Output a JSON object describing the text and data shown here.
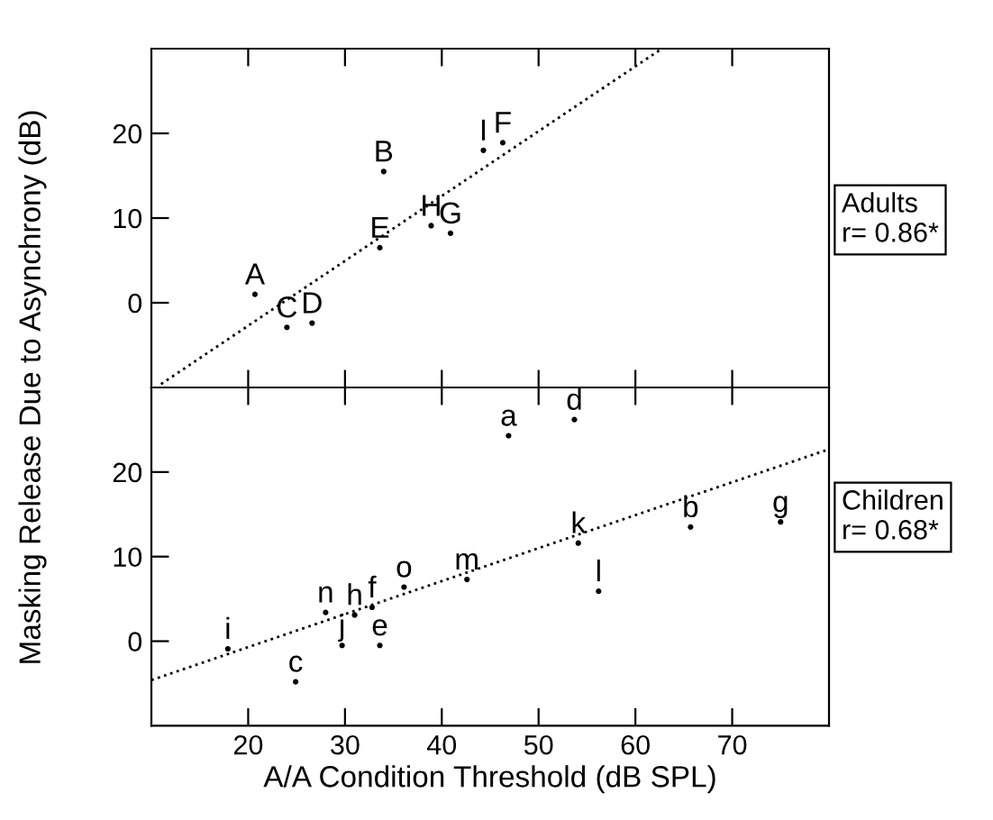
{
  "chart_data": [
    {
      "type": "scatter",
      "ylabel": "Masking Release Due to Asynchrony (dB)",
      "xlim": [
        10,
        80
      ],
      "xticks": [
        {
          "value": 20,
          "label": null
        },
        {
          "value": 30,
          "label": null
        },
        {
          "value": 40,
          "label": null
        },
        {
          "value": 50,
          "label": null
        },
        {
          "value": 60,
          "label": null
        },
        {
          "value": 70,
          "label": null
        }
      ],
      "ylim": [
        -10,
        30
      ],
      "yticks": [
        0,
        10,
        20
      ],
      "tick_labels": "y",
      "grid": false,
      "legend": false,
      "annotations": [
        "Adults\nr= 0.86*"
      ],
      "series": [
        {
          "color": "#000000",
          "x": [
            20.7,
            34.0,
            24.0,
            26.6,
            33.6,
            46.3,
            40.9,
            38.9,
            44.3
          ],
          "values": [
            1.0,
            15.5,
            -2.9,
            -2.4,
            6.5,
            18.9,
            8.2,
            9.1,
            18.0
          ],
          "value_labels": [
            "A",
            "B",
            "C",
            "D",
            "E",
            "F",
            "G",
            "H",
            "I"
          ]
        },
        {
          "type": "line",
          "color": "#000000",
          "line_style": "dotted",
          "x": [
            11.0,
            62.6
          ],
          "values": [
            -9.6,
            29.9
          ]
        }
      ]
    },
    {
      "type": "scatter",
      "xlabel": "A/A Condition Threshold (dB SPL)",
      "xlim": [
        10,
        80
      ],
      "xticks": [
        20,
        30,
        40,
        50,
        60,
        70
      ],
      "ylim": [
        -10,
        30
      ],
      "yticks": [
        0,
        10,
        20
      ],
      "grid": false,
      "legend": false,
      "annotations": [
        "Children\nr= 0.68*"
      ],
      "series": [
        {
          "color": "#000000",
          "x": [
            46.9,
            65.7,
            24.9,
            53.7,
            33.6,
            32.8,
            75.0,
            31.0,
            17.9,
            29.7,
            54.1,
            56.2,
            42.6,
            28.0,
            36.1
          ],
          "values": [
            24.3,
            13.5,
            -4.8,
            26.2,
            -0.5,
            4.0,
            14.1,
            3.1,
            -0.9,
            -0.5,
            11.6,
            5.9,
            7.3,
            3.4,
            6.4
          ],
          "value_labels": [
            "a",
            "b",
            "c",
            "d",
            "e",
            "f",
            "g",
            "h",
            "i",
            "j",
            "k",
            "l",
            "m",
            "n",
            "o"
          ]
        },
        {
          "type": "line",
          "color": "#000000",
          "line_style": "dotted",
          "x": [
            10.0,
            80.0
          ],
          "values": [
            -4.6,
            22.7
          ]
        }
      ]
    }
  ]
}
